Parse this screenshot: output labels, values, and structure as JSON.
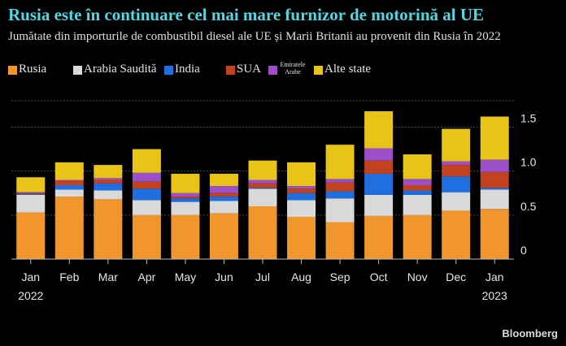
{
  "title": "Rusia este în continuare cel mai mare furnizor de motorină al UE",
  "subtitle": "Jumătate din importurile de combustibil diesel ale UE și Marii Britanii au provenit din Rusia în 2022",
  "source": "Bloomberg",
  "colors": {
    "Rusia": "#f0962d",
    "Arabia Saudită": "#d9d9d9",
    "India": "#1f6fe0",
    "SUA": "#c2421e",
    "Emiratele Arabe": "#9b4fc8",
    "Alte state": "#e8c417",
    "grid": "#4a4a4a",
    "text": "#e6e6e6"
  },
  "chart_data": {
    "type": "bar",
    "stacked": true,
    "categories": [
      "Jan",
      "Feb",
      "Mar",
      "Apr",
      "May",
      "Jun",
      "Jul",
      "Aug",
      "Sep",
      "Oct",
      "Nov",
      "Dec",
      "Jan"
    ],
    "category_years": [
      "2022",
      "",
      "",
      "",
      "",
      "",
      "",
      "",
      "",
      "",
      "",
      "",
      "2023"
    ],
    "series": [
      {
        "name": "Rusia",
        "values": [
          0.53,
          0.71,
          0.68,
          0.5,
          0.5,
          0.52,
          0.6,
          0.48,
          0.42,
          0.49,
          0.5,
          0.55,
          0.57
        ]
      },
      {
        "name": "Arabia Saudită",
        "values": [
          0.2,
          0.08,
          0.1,
          0.17,
          0.15,
          0.14,
          0.2,
          0.19,
          0.27,
          0.24,
          0.23,
          0.21,
          0.22
        ]
      },
      {
        "name": "India",
        "values": [
          0.01,
          0.05,
          0.08,
          0.13,
          0.04,
          0.05,
          0.01,
          0.08,
          0.08,
          0.24,
          0.05,
          0.18,
          0.02
        ]
      },
      {
        "name": "SUA",
        "values": [
          0.01,
          0.05,
          0.04,
          0.08,
          0.02,
          0.04,
          0.05,
          0.05,
          0.1,
          0.15,
          0.06,
          0.13,
          0.18
        ]
      },
      {
        "name": "Emiratele Arabe",
        "values": [
          0.01,
          0.01,
          0.02,
          0.1,
          0.04,
          0.08,
          0.04,
          0.03,
          0.04,
          0.14,
          0.07,
          0.04,
          0.14
        ]
      },
      {
        "name": "Alte state",
        "values": [
          0.17,
          0.2,
          0.15,
          0.27,
          0.22,
          0.14,
          0.22,
          0.27,
          0.39,
          0.42,
          0.28,
          0.37,
          0.49
        ]
      }
    ],
    "legend": [
      {
        "name": "Rusia",
        "label": "Rusia"
      },
      {
        "name": "Arabia Saudită",
        "label": "Arabia Saudită"
      },
      {
        "name": "India",
        "label": "India"
      },
      {
        "name": "SUA",
        "label": "SUA"
      },
      {
        "name": "Emiratele Arabe",
        "label": "Emiratele Arabe",
        "small": true
      },
      {
        "name": "Alte state",
        "label": "Alte state"
      }
    ],
    "yticks": [
      0,
      0.5,
      1.0,
      1.5
    ],
    "ytick_labels": [
      "0",
      "0.5",
      "1.0",
      "1.5"
    ],
    "ylim": [
      0,
      1.8
    ],
    "grid": true,
    "legend_position": "top-left",
    "xlabel": "",
    "ylabel": ""
  }
}
